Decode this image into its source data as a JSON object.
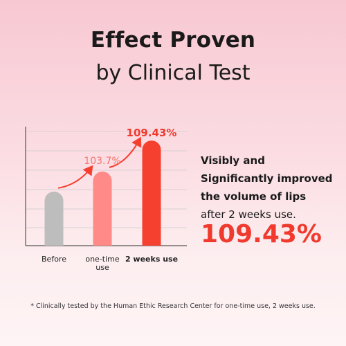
{
  "header": {
    "title_line1": "Effect Proven",
    "title_line2": "by Clinical Test"
  },
  "claim": {
    "line1": "Visibly and",
    "line2": "Significantly improved",
    "line3": "the volume of lips",
    "line4": "after 2 weeks use.",
    "highlight_value": "109.43%"
  },
  "footnote": "* Clinically tested by the Human Ethic Research Center for one-time use, 2 weeks use.",
  "colors": {
    "accent": "#f03a2e",
    "before_bar": "#bdbdbd",
    "one_time_bar": "#ff8a87",
    "two_weeks_bar": "#f5402f"
  },
  "chart_data": {
    "type": "bar",
    "categories": [
      "Before",
      "one-time use",
      "2 weeks use"
    ],
    "category_lines": [
      [
        "Before"
      ],
      [
        "one-time",
        "use"
      ],
      [
        "2 weeks use"
      ]
    ],
    "values": [
      100,
      103.7,
      109.43
    ],
    "data_labels": [
      "",
      "103.7%",
      "109.43%"
    ],
    "bar_colors": [
      "#bdbdbd",
      "#ff8a87",
      "#f5402f"
    ],
    "label_colors": [
      "#333333",
      "#f0756e",
      "#f03a2e"
    ],
    "bold_category": [
      false,
      false,
      true
    ],
    "ylim": [
      90,
      112
    ],
    "grid": true,
    "title": "",
    "xlabel": "",
    "ylabel": ""
  }
}
